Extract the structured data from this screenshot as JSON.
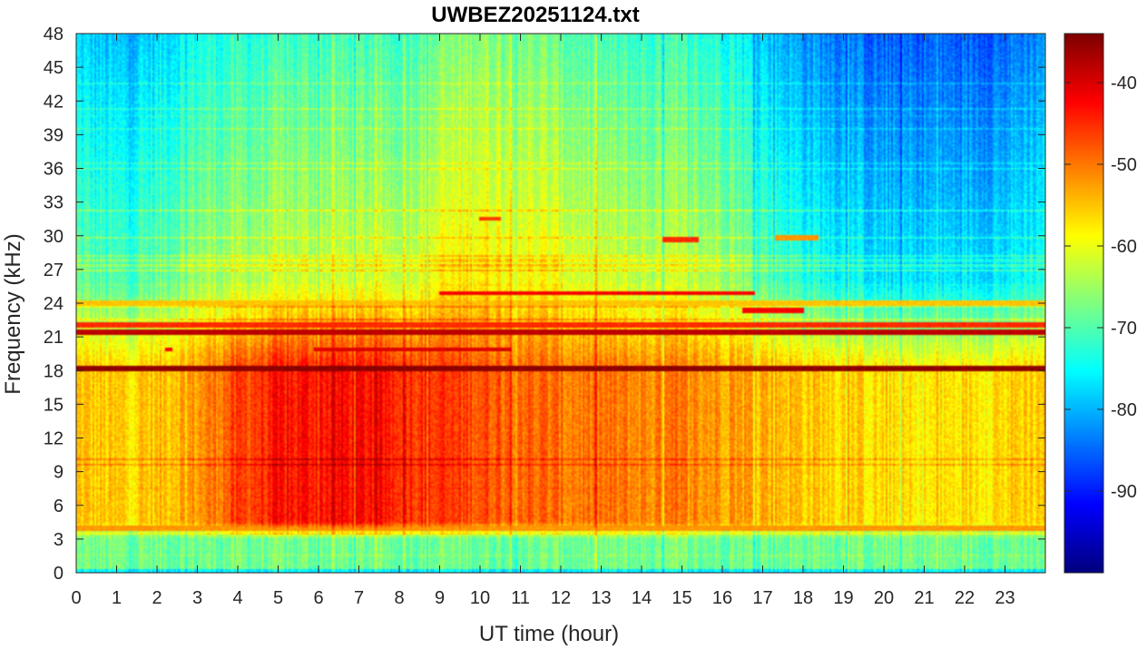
{
  "chart_data": {
    "type": "heatmap",
    "title": "UWBEZ20251124.txt",
    "xlabel": "UT time (hour)",
    "ylabel": "Frequency (kHz)",
    "xlim": [
      0,
      24
    ],
    "ylim": [
      0,
      48
    ],
    "x_ticks": [
      "0",
      "1",
      "2",
      "3",
      "4",
      "5",
      "6",
      "7",
      "8",
      "9",
      "10",
      "11",
      "12",
      "13",
      "14",
      "15",
      "16",
      "17",
      "18",
      "19",
      "20",
      "21",
      "22",
      "23"
    ],
    "y_ticks": [
      "0",
      "3",
      "6",
      "9",
      "12",
      "15",
      "18",
      "21",
      "24",
      "27",
      "30",
      "33",
      "36",
      "39",
      "42",
      "45",
      "48"
    ],
    "colorbar": {
      "colormap": "jet",
      "range": [
        -100,
        -34
      ],
      "ticks": [
        "-90",
        "-80",
        "-70",
        "-60",
        "-50",
        "-40"
      ]
    },
    "bands": {
      "time_hours": [
        0,
        1,
        2,
        3,
        4,
        5,
        6,
        7,
        8,
        9,
        10,
        11,
        12,
        13,
        14,
        15,
        16,
        17,
        18,
        19,
        20,
        21,
        22,
        23,
        24
      ],
      "background_high_freq_dB": [
        -72,
        -74,
        -72,
        -68,
        -67,
        -66,
        -65,
        -65,
        -65,
        -62,
        -60,
        -61,
        -63,
        -65,
        -66,
        -66,
        -67,
        -72,
        -76,
        -78,
        -80,
        -80,
        -80,
        -79,
        -76
      ],
      "broadband_3_to_18kHz_dB": [
        -55,
        -56,
        -55,
        -52,
        -47,
        -44,
        -43,
        -43,
        -44,
        -46,
        -47,
        -48,
        -50,
        -50,
        -51,
        -51,
        -52,
        -53,
        -55,
        -56,
        -57,
        -58,
        -57,
        -56,
        -55
      ],
      "low_band_0_to_3kHz_dB": -68
    },
    "transmitter_lines": [
      {
        "freq_khz": 18.2,
        "start_hour": 0,
        "end_hour": 24,
        "level_dB": -35
      },
      {
        "freq_khz": 21.4,
        "start_hour": 0,
        "end_hour": 24,
        "level_dB": -38
      },
      {
        "freq_khz": 22.1,
        "start_hour": 0,
        "end_hour": 24,
        "level_dB": -45
      },
      {
        "freq_khz": 19.9,
        "start_hour": 5.9,
        "end_hour": 10.8,
        "level_dB": -40
      },
      {
        "freq_khz": 24.9,
        "start_hour": 9.0,
        "end_hour": 16.8,
        "level_dB": -42
      },
      {
        "freq_khz": 24.0,
        "start_hour": 0,
        "end_hour": 24,
        "level_dB": -55
      },
      {
        "freq_khz": 23.3,
        "start_hour": 16.5,
        "end_hour": 18.0,
        "level_dB": -42
      },
      {
        "freq_khz": 29.7,
        "start_hour": 14.5,
        "end_hour": 15.4,
        "level_dB": -45
      },
      {
        "freq_khz": 29.8,
        "start_hour": 17.3,
        "end_hour": 18.4,
        "level_dB": -52
      },
      {
        "freq_khz": 31.5,
        "start_hour": 10.0,
        "end_hour": 10.5,
        "level_dB": -46
      },
      {
        "freq_khz": 4.0,
        "start_hour": 0,
        "end_hour": 24,
        "level_dB": -52
      },
      {
        "freq_khz": 19.9,
        "start_hour": 2.2,
        "end_hour": 2.4,
        "level_dB": -42
      }
    ]
  }
}
